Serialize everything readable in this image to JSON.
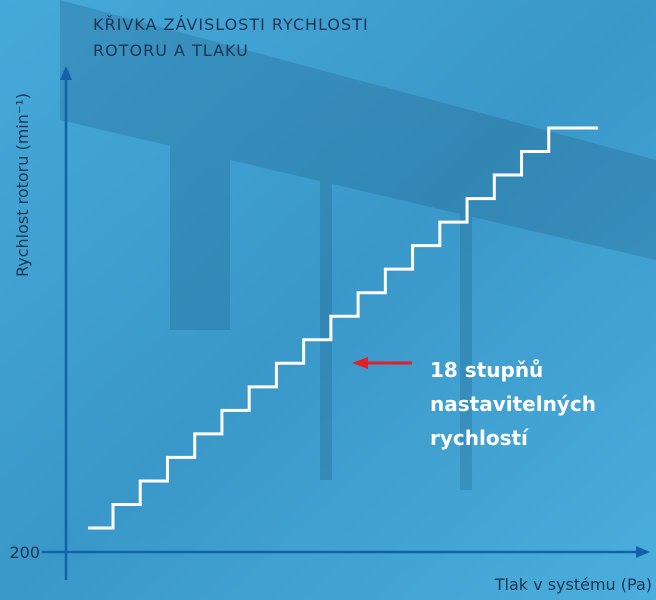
{
  "title": {
    "line1": "KŘIVKA ZÁVISLOSTI RYCHLOSTI",
    "line2": "ROTORU A TLAKU"
  },
  "axes": {
    "y_label": "Rychlost rotoru (min⁻¹)",
    "x_label": "Tlak v systému (Pa)",
    "y_start": "200"
  },
  "annotation": {
    "lines": [
      "18 stupňů",
      "nastavitelných",
      "rychlostí"
    ]
  }
}
